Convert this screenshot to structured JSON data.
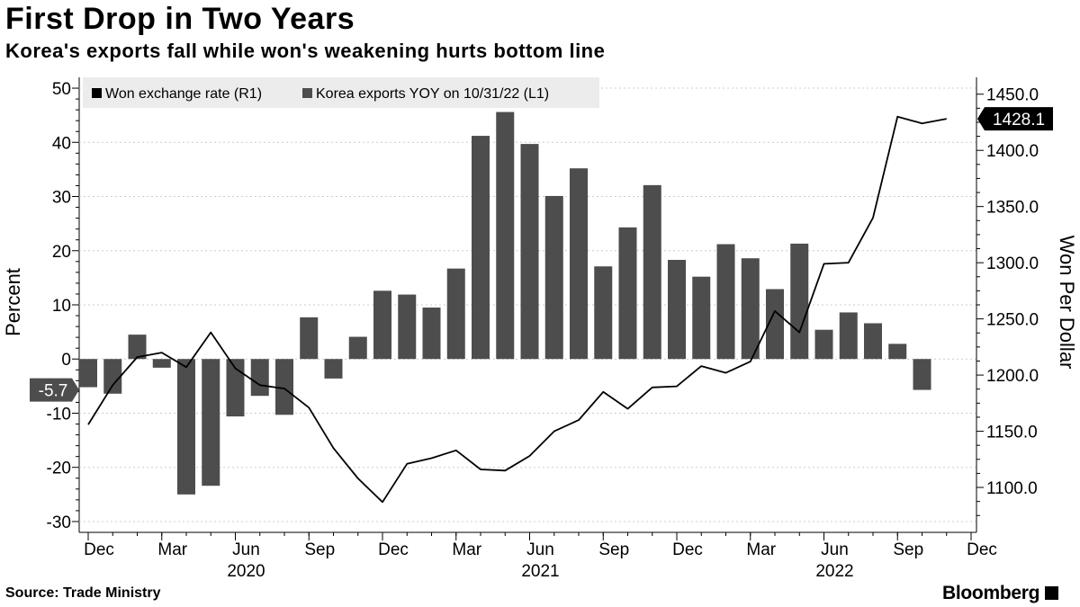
{
  "title": "First Drop in Two Years",
  "subtitle": "Korea's exports fall while won's weakening hurts bottom line",
  "source": "Source: Trade Ministry",
  "brand": "Bloomberg",
  "colors": {
    "bar": "#4d4d4d",
    "line": "#000000",
    "legend_bg": "#ececec",
    "grid": "#cccccc"
  },
  "chart_data": {
    "type": "bar+line",
    "legend": [
      {
        "label": "Won exchange rate (R1)",
        "color": "#000000"
      },
      {
        "label": "Korea exports YOY on 10/31/22 (L1)",
        "color": "#4d4d4d"
      }
    ],
    "left_axis": {
      "label": "Percent",
      "ylim": [
        -32,
        52
      ],
      "ticks": [
        50,
        40,
        30,
        20,
        10,
        0,
        -10,
        -20,
        -30
      ]
    },
    "right_axis": {
      "label": "Won Per Dollar",
      "ylim": [
        1060,
        1465
      ],
      "ticks": [
        "1450.0",
        "1400.0",
        "1350.0",
        "1300.0",
        "1250.0",
        "1200.0",
        "1150.0",
        "1100.0"
      ]
    },
    "x_ticks": [
      {
        "index": 0,
        "label": "Dec",
        "year": ""
      },
      {
        "index": 3,
        "label": "Mar",
        "year": ""
      },
      {
        "index": 6,
        "label": "Jun",
        "year": "2020"
      },
      {
        "index": 9,
        "label": "Sep",
        "year": ""
      },
      {
        "index": 12,
        "label": "Dec",
        "year": ""
      },
      {
        "index": 15,
        "label": "Mar",
        "year": ""
      },
      {
        "index": 18,
        "label": "Jun",
        "year": "2021"
      },
      {
        "index": 21,
        "label": "Sep",
        "year": ""
      },
      {
        "index": 24,
        "label": "Dec",
        "year": ""
      },
      {
        "index": 27,
        "label": "Mar",
        "year": ""
      },
      {
        "index": 30,
        "label": "Jun",
        "year": "2022"
      },
      {
        "index": 33,
        "label": "Sep",
        "year": ""
      },
      {
        "index": 36,
        "label": "Dec",
        "year": ""
      }
    ],
    "exports_yoy": [
      -5.2,
      -6.4,
      4.5,
      -1.6,
      -25.0,
      -23.4,
      -10.6,
      -6.8,
      -10.3,
      7.7,
      -3.6,
      4.1,
      12.6,
      11.9,
      9.5,
      16.7,
      41.2,
      45.6,
      39.7,
      30.1,
      35.2,
      17.1,
      24.3,
      32.1,
      18.3,
      15.2,
      21.2,
      18.6,
      12.9,
      21.3,
      5.4,
      8.6,
      6.6,
      2.8,
      -5.7
    ],
    "won_rate": [
      1156,
      1191,
      1216,
      1220,
      1207,
      1238,
      1206,
      1191,
      1188,
      1171,
      1135,
      1108,
      1087,
      1121,
      1126,
      1133,
      1116,
      1115,
      1128,
      1150,
      1160,
      1185,
      1170,
      1189,
      1190,
      1208,
      1202,
      1212,
      1257,
      1238,
      1299,
      1300,
      1340,
      1430,
      1424,
      1428.1
    ],
    "last_values": {
      "exports": "-5.7",
      "won": "1428.1"
    }
  }
}
